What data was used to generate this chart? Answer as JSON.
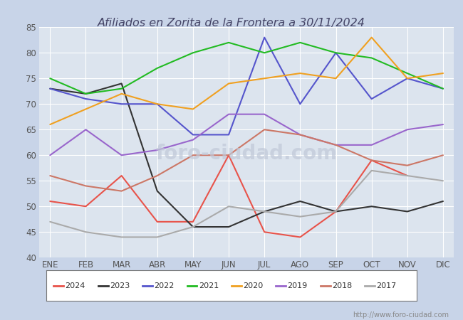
{
  "title": "Afiliados en Zorita de la Frontera a 30/11/2024",
  "months": [
    "ENE",
    "FEB",
    "MAR",
    "ABR",
    "MAY",
    "JUN",
    "JUL",
    "AGO",
    "SEP",
    "OCT",
    "NOV",
    "DIC"
  ],
  "ylim": [
    40,
    85
  ],
  "yticks": [
    40,
    45,
    50,
    55,
    60,
    65,
    70,
    75,
    80,
    85
  ],
  "series": {
    "2024": {
      "color": "#e8534a",
      "data": [
        51,
        50,
        56,
        47,
        47,
        60,
        45,
        44,
        49,
        59,
        56,
        null
      ]
    },
    "2023": {
      "color": "#333333",
      "data": [
        73,
        72,
        74,
        53,
        46,
        46,
        49,
        51,
        49,
        50,
        49,
        51
      ]
    },
    "2022": {
      "color": "#5555cc",
      "data": [
        73,
        71,
        70,
        70,
        64,
        64,
        83,
        70,
        80,
        71,
        75,
        73
      ]
    },
    "2021": {
      "color": "#22bb22",
      "data": [
        75,
        72,
        73,
        77,
        80,
        82,
        80,
        82,
        80,
        79,
        76,
        73
      ]
    },
    "2020": {
      "color": "#f0a020",
      "data": [
        66,
        69,
        72,
        70,
        69,
        74,
        75,
        76,
        75,
        83,
        75,
        76
      ]
    },
    "2019": {
      "color": "#9966cc",
      "data": [
        60,
        65,
        60,
        61,
        63,
        68,
        68,
        64,
        62,
        62,
        65,
        66
      ]
    },
    "2018": {
      "color": "#cc7766",
      "data": [
        56,
        54,
        53,
        56,
        60,
        60,
        65,
        64,
        62,
        59,
        58,
        60
      ]
    },
    "2017": {
      "color": "#aaaaaa",
      "data": [
        47,
        45,
        44,
        44,
        46,
        50,
        49,
        48,
        49,
        57,
        56,
        55
      ]
    }
  },
  "legend_order": [
    "2024",
    "2023",
    "2022",
    "2021",
    "2020",
    "2019",
    "2018",
    "2017"
  ],
  "url_text": "http://www.foro-ciudad.com",
  "bg_color": "#c8d4e8",
  "plot_bg_color": "#dce4ee",
  "grid_color": "#ffffff",
  "title_color": "#444466"
}
